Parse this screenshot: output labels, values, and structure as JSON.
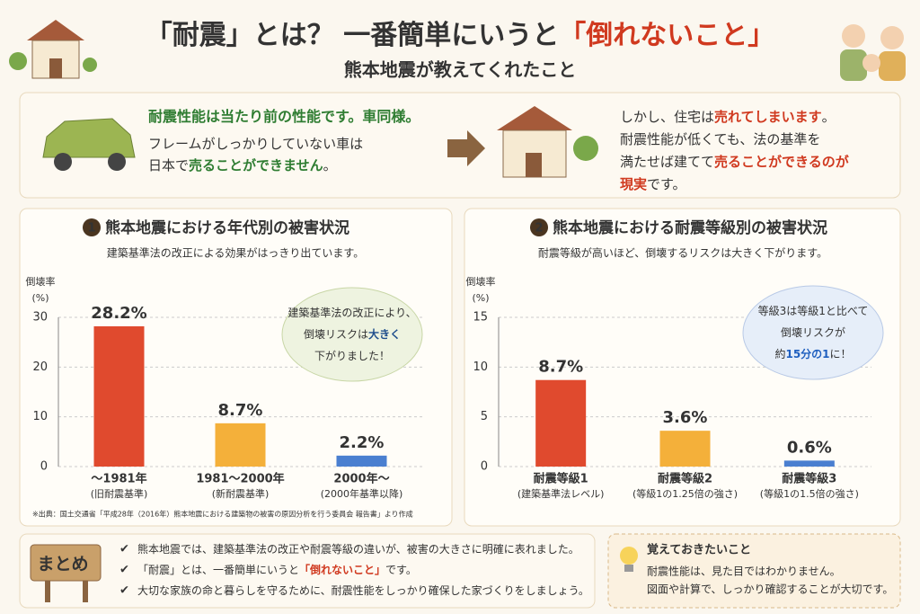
{
  "header": {
    "title": [
      {
        "text": "「耐震」とは？ 一番簡単にいうと"
      },
      {
        "text": "「倒れないこと」",
        "color": "#d0391f"
      }
    ],
    "subtitle": "熊本地震が教えてくれたこと"
  },
  "intro": {
    "left": {
      "heading": [
        {
          "text": "耐震性能は当たり前の性能です。車同様。",
          "color": "#2f7d32"
        }
      ],
      "lines": [
        [
          {
            "text": "フレームがしっかりしていない車は"
          }
        ],
        [
          {
            "text": "日本で"
          },
          {
            "text": "売ることができません",
            "color": "#2f7d32"
          },
          {
            "text": "。"
          }
        ]
      ]
    },
    "right": {
      "lines": [
        [
          {
            "text": "しかし、住宅は"
          },
          {
            "text": "売れてしまいます",
            "color": "#d0391f"
          },
          {
            "text": "。"
          }
        ],
        [
          {
            "text": "耐震性能が低くても、法の基準を"
          }
        ],
        [
          {
            "text": "満たせば建てて"
          },
          {
            "text": "売ることができるのが",
            "color": "#d0391f"
          }
        ],
        [
          {
            "text": "現実",
            "color": "#d0391f"
          },
          {
            "text": "です。"
          }
        ]
      ]
    }
  },
  "chart_data": [
    {
      "type": "bar",
      "number": "1",
      "title": "熊本地震における年代別の被害状況",
      "subtitle": "建築基準法の改正による効果がはっきり出ています。",
      "ylabel": [
        "倒壊率",
        "(%)"
      ],
      "categories": [
        "〜1981年",
        "1981〜2000年",
        "2000年〜"
      ],
      "category_notes": [
        "(旧耐震基準)",
        "(新耐震基準)",
        "(2000年基準以降)"
      ],
      "values": [
        28.2,
        8.7,
        2.2
      ],
      "value_labels": [
        "28.2%",
        "8.7%",
        "2.2%"
      ],
      "colors": [
        "#e04a2e",
        "#f4b03a",
        "#4a7fd0"
      ],
      "ylim": [
        0,
        30
      ],
      "yticks": [
        0,
        10,
        20,
        30
      ],
      "grid": true,
      "annotation": [
        [
          {
            "text": "建築基準法の改正により、"
          }
        ],
        [
          {
            "text": "倒壊リスクは"
          },
          {
            "text": "大きく",
            "color": "#1f4e8c"
          }
        ],
        [
          {
            "text": "下がりました！"
          }
        ]
      ],
      "source": "※出典：国土交通省「平成28年（2016年）熊本地震における建築物の被害の原因分析を行う委員会 報告書」より作成"
    },
    {
      "type": "bar",
      "number": "2",
      "title": "熊本地震における耐震等級別の被害状況",
      "subtitle": "耐震等級が高いほど、倒壊するリスクは大きく下がります。",
      "ylabel": [
        "倒壊率",
        "(%)"
      ],
      "categories": [
        "耐震等級1",
        "耐震等級2",
        "耐震等級3"
      ],
      "category_notes": [
        "(建築基準法レベル)",
        "(等級1の1.25倍の強さ)",
        "(等級1の1.5倍の強さ)"
      ],
      "values": [
        8.7,
        3.6,
        0.6
      ],
      "value_labels": [
        "8.7%",
        "3.6%",
        "0.6%"
      ],
      "colors": [
        "#e04a2e",
        "#f4b03a",
        "#4a7fd0"
      ],
      "ylim": [
        0,
        15
      ],
      "yticks": [
        0,
        5,
        10,
        15
      ],
      "grid": true,
      "annotation": [
        [
          {
            "text": "等級3は等級1と比べて"
          }
        ],
        [
          {
            "text": "倒壊リスクが"
          }
        ],
        [
          {
            "text": "約"
          },
          {
            "text": "15分の1",
            "color": "#1f5fbf"
          },
          {
            "text": "に！"
          }
        ]
      ]
    }
  ],
  "summary": {
    "label": "まとめ",
    "items": [
      [
        {
          "text": "熊本地震では、建築基準法の改正や耐震等級の違いが、被害の大きさに明確に表れました。"
        }
      ],
      [
        {
          "text": "「耐震」とは、一番簡単にいうと"
        },
        {
          "text": "「倒れないこと」",
          "color": "#d0391f"
        },
        {
          "text": "です。"
        }
      ],
      [
        {
          "text": "大切な家族の命と暮らしを守るために、耐震性能をしっかり確保した家づくりをしましょう。"
        }
      ]
    ],
    "note": {
      "title": "覚えておきたいこと",
      "lines": [
        "耐震性能は、見た目ではわかりません。",
        "図面や計算で、しっかり確認することが大切です。"
      ]
    }
  }
}
